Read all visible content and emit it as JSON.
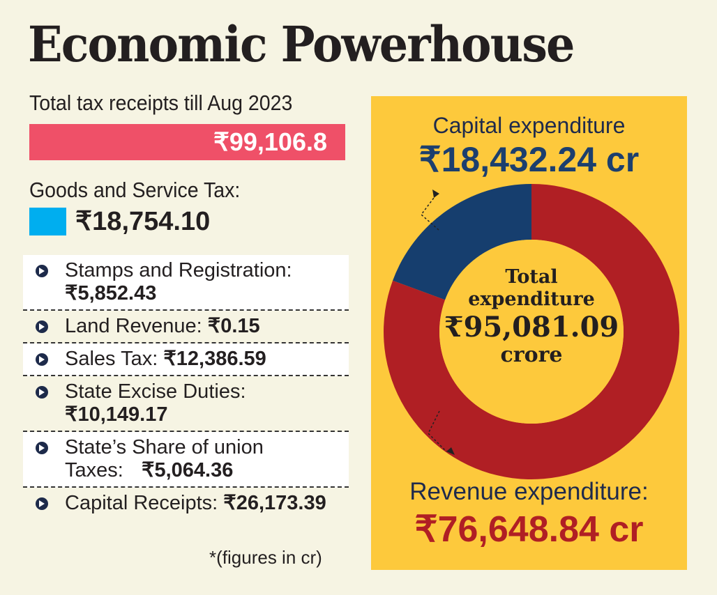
{
  "title": "Economic Powerhouse",
  "tax": {
    "label": "Total tax receipts till Aug 2023",
    "value": "₹99,106.8"
  },
  "gst": {
    "label": "Goods and Service Tax:",
    "value": "₹18,754.10",
    "color": "#00aeef"
  },
  "items": [
    {
      "label": "Stamps and Registration:",
      "value": "₹5,852.43"
    },
    {
      "label": "Land Revenue:",
      "value": "₹0.15"
    },
    {
      "label": "Sales Tax:",
      "value": "₹12,386.59"
    },
    {
      "label": "State Excise Duties:",
      "value": "₹10,149.17"
    },
    {
      "label": "State’s Share of union Taxes:",
      "value": "₹5,064.36"
    },
    {
      "label": "Capital Receipts:",
      "value": "₹26,173.39"
    }
  ],
  "note": "*(figures in cr)",
  "chart_data": {
    "type": "pie",
    "title": "Total expenditure",
    "center_text": [
      "Total",
      "expenditure",
      "₹95,081.09",
      "crore"
    ],
    "total": 95081.09,
    "slices": [
      {
        "name": "Capital expenditure",
        "value": 18432.24,
        "label": "₹18,432.24 cr",
        "color": "#163e6e"
      },
      {
        "name": "Revenue expenditure:",
        "value": 76648.84,
        "label": "₹76,648.84 cr",
        "color": "#b01f24"
      }
    ]
  }
}
